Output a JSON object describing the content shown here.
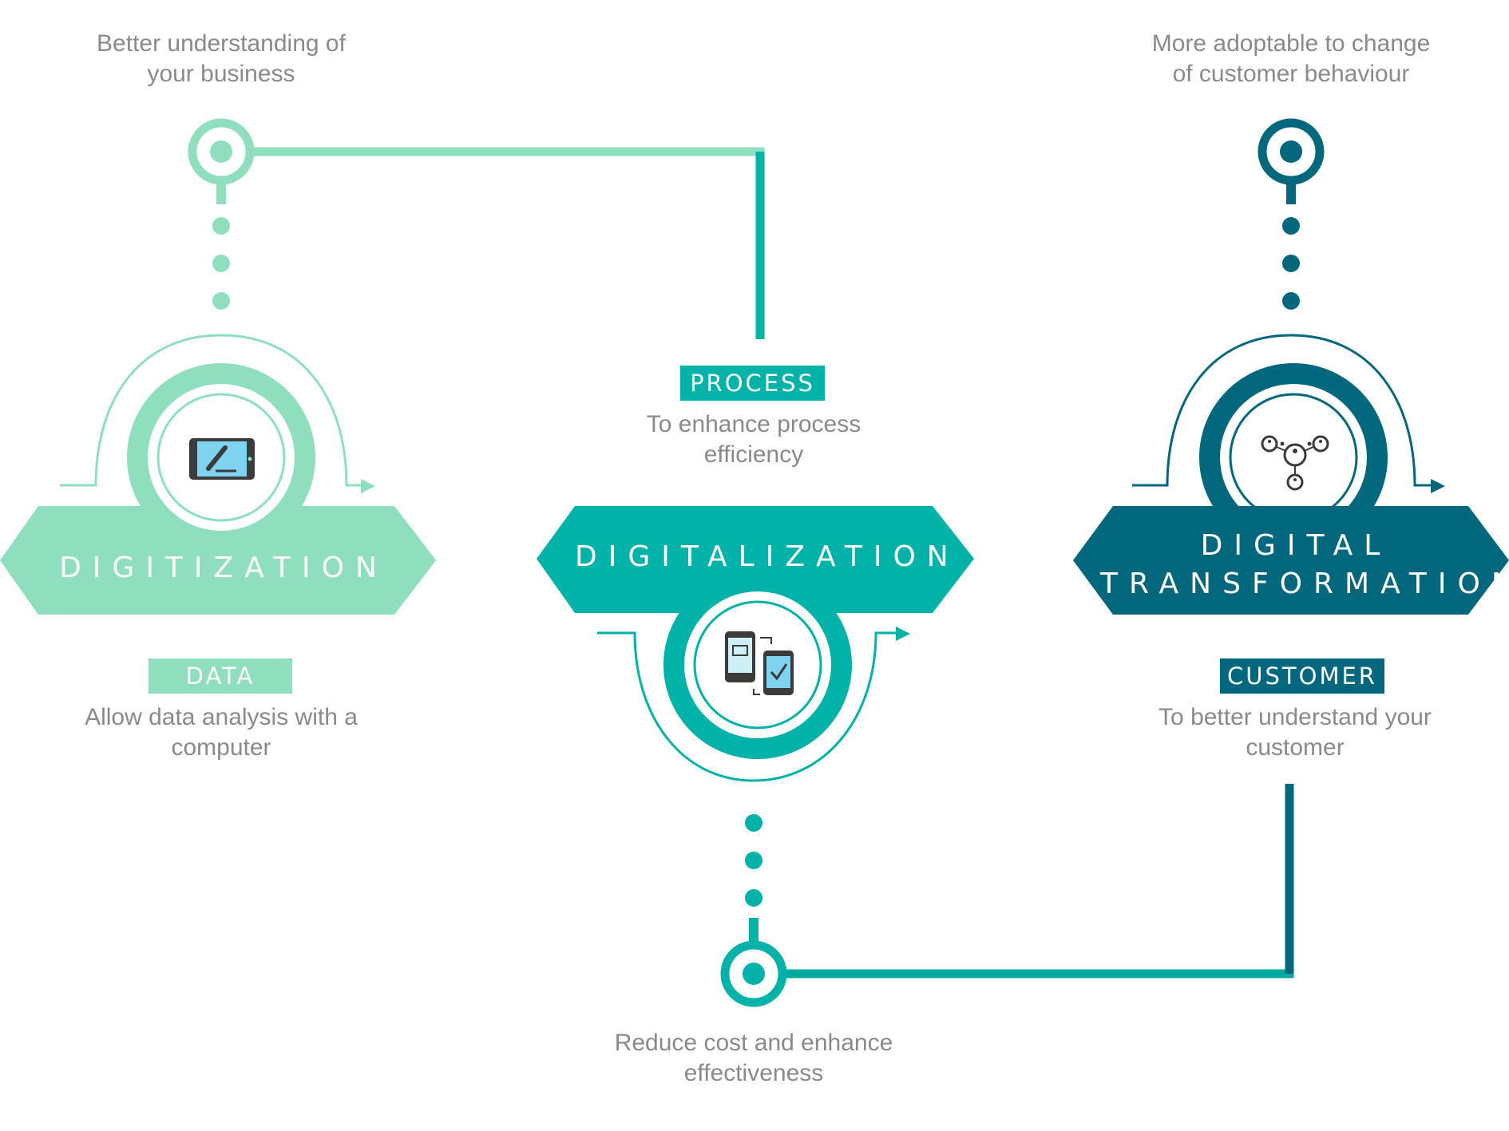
{
  "colors": {
    "light": "#8fdfbf",
    "mid": "#00b2a7",
    "dark": "#00677d",
    "text": "#8a8a8a"
  },
  "stages": {
    "digitization": {
      "name": "DIGITIZATION",
      "tag": "DATA",
      "description": "Allow data analysis with a\ncomputer",
      "benefit": "Better understanding of\nyour business",
      "icon": "tablet-pen-icon"
    },
    "digitalization": {
      "name": "DIGITALIZATION",
      "tag": "PROCESS",
      "description": "To enhance process\nefficiency",
      "benefit": "Reduce cost and enhance\neffectiveness",
      "icon": "phone-sync-icon"
    },
    "transformation": {
      "name": "DIGITAL\nTRANSFORMATION",
      "tag": "CUSTOMER",
      "description": "To better understand your\ncustomer",
      "benefit": "More adoptable to change\nof customer behaviour",
      "icon": "customer-network-icon"
    }
  }
}
